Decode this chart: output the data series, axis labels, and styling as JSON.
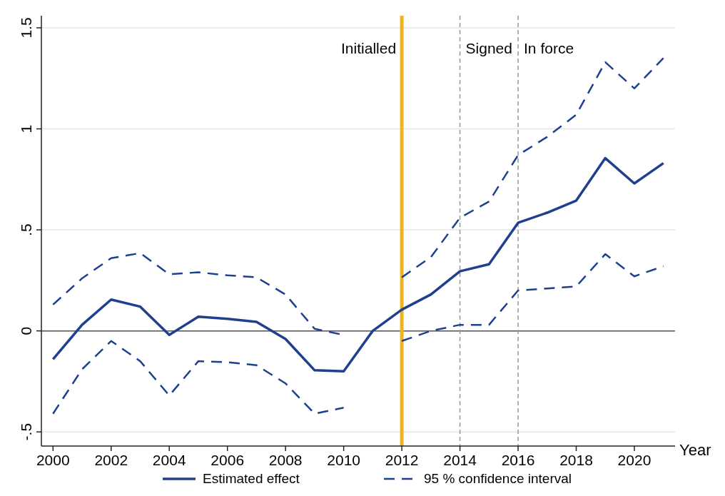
{
  "chart_data": {
    "type": "line",
    "xlabel": "Year",
    "x": [
      2000,
      2001,
      2002,
      2003,
      2004,
      2005,
      2006,
      2007,
      2008,
      2009,
      2010,
      2011,
      2012,
      2013,
      2014,
      2015,
      2016,
      2017,
      2018,
      2019,
      2020,
      2021
    ],
    "series": [
      {
        "name": "Estimated effect",
        "color": "#1f3f8f",
        "line_style": "solid",
        "values": [
          -0.14,
          0.03,
          0.155,
          0.12,
          -0.02,
          0.07,
          0.06,
          0.045,
          -0.04,
          -0.195,
          -0.2,
          0.0,
          0.105,
          0.18,
          0.295,
          0.33,
          0.535,
          0.585,
          0.645,
          0.855,
          0.73,
          0.83
        ]
      },
      {
        "name": "95 % confidence interval",
        "color": "#1f3f8f",
        "line_style": "dashed",
        "values": [
          0.13,
          0.26,
          0.36,
          0.385,
          0.28,
          0.29,
          0.275,
          0.265,
          0.18,
          0.01,
          -0.02,
          null,
          0.265,
          0.365,
          0.56,
          0.64,
          0.87,
          0.96,
          1.07,
          1.33,
          1.2,
          1.35
        ]
      },
      {
        "color": "#1f3f8f",
        "line_style": "dashed",
        "values": [
          -0.41,
          -0.19,
          -0.05,
          -0.15,
          -0.32,
          -0.15,
          -0.155,
          -0.17,
          -0.26,
          -0.41,
          -0.38,
          null,
          -0.05,
          0.0,
          0.03,
          0.03,
          0.2,
          0.21,
          0.22,
          0.38,
          0.27,
          0.32
        ]
      }
    ],
    "xlim": [
      1999.6,
      2021.4
    ],
    "xticks": [
      2000,
      2002,
      2004,
      2006,
      2008,
      2010,
      2012,
      2014,
      2016,
      2018,
      2020
    ],
    "ylim": [
      -0.57,
      1.56
    ],
    "yticks": [
      {
        "value": -0.5,
        "label": "-.5"
      },
      0,
      {
        "value": 0.5,
        "label": ".5"
      },
      1,
      1.5
    ],
    "ref_lines": [
      {
        "axis": "y",
        "value": 0,
        "color": "#555555",
        "line_style": "solid"
      },
      {
        "axis": "x",
        "value": 2012,
        "label": "Initialled",
        "color": "#f0b518",
        "line_style": "solid"
      },
      {
        "axis": "x",
        "value": 2014,
        "label": "Signed",
        "color": "#999999",
        "line_style": "dashed"
      },
      {
        "axis": "x",
        "value": 2016,
        "label": "In force",
        "color": "#999999",
        "line_style": "dashed"
      }
    ],
    "grid": "y",
    "legend": "bottom",
    "marker": "none"
  }
}
